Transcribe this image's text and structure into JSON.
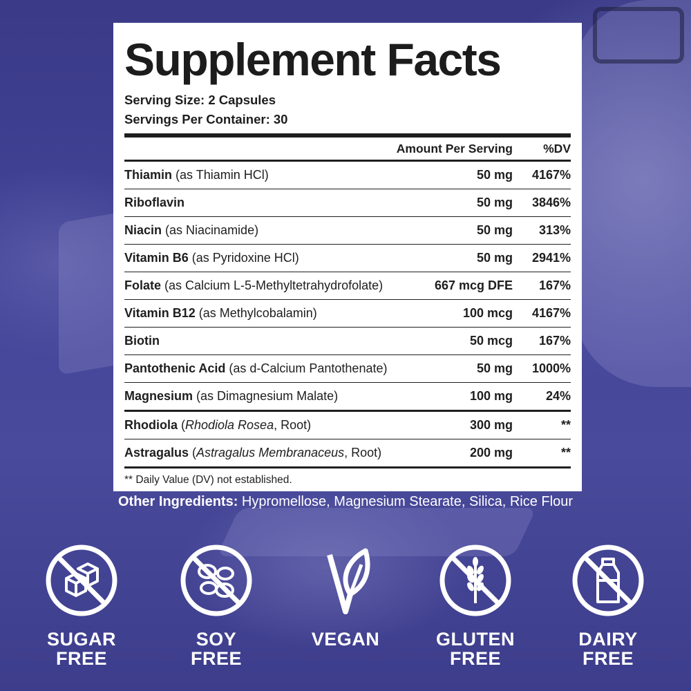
{
  "panel": {
    "title": "Supplement Facts",
    "serving_size": "Serving Size: 2 Capsules",
    "servings_per_container": "Servings Per Container: 30",
    "header_amount": "Amount Per Serving",
    "header_dv": "%DV",
    "rows": [
      {
        "name": "Thiamin",
        "source": " (as Thiamin HCl)",
        "amount": "50 mg",
        "dv": "4167%"
      },
      {
        "name": "Riboflavin",
        "source": "",
        "amount": "50 mg",
        "dv": "3846%"
      },
      {
        "name": "Niacin",
        "source": " (as Niacinamide)",
        "amount": "50 mg",
        "dv": "313%"
      },
      {
        "name": "Vitamin B6",
        "source": " (as Pyridoxine HCl)",
        "amount": "50 mg",
        "dv": "2941%"
      },
      {
        "name": "Folate",
        "source": " (as Calcium L-5-Methyltetrahydrofolate)",
        "amount": "667 mcg DFE",
        "dv": "167%"
      },
      {
        "name": "Vitamin B12",
        "source": " (as Methylcobalamin)",
        "amount": "100 mcg",
        "dv": "4167%"
      },
      {
        "name": "Biotin",
        "source": "",
        "amount": "50 mcg",
        "dv": "167%"
      },
      {
        "name": "Pantothenic Acid",
        "source": " (as d-Calcium Pantothenate)",
        "amount": "50 mg",
        "dv": "1000%"
      },
      {
        "name": "Magnesium",
        "source": " (as Dimagnesium Malate)",
        "amount": "100 mg",
        "dv": "24%"
      },
      {
        "name": "Rhodiola",
        "source_open": " (",
        "source_italic": "Rhodiola Rosea",
        "source_close": ", Root)",
        "amount": "300 mg",
        "dv": "**"
      },
      {
        "name": "Astragalus",
        "source_open": " (",
        "source_italic": "Astragalus Membranaceus",
        "source_close": ", Root)",
        "amount": "200 mg",
        "dv": "**"
      }
    ],
    "footnote": "** Daily Value (DV) not established."
  },
  "other_ingredients": {
    "label": "Other Ingredients:",
    "text": " Hypromellose, Magnesium Stearate, Silica, Rice Flour"
  },
  "badges": [
    {
      "line1": "SUGAR",
      "line2": "FREE",
      "icon": "sugar-cube-prohibited-icon"
    },
    {
      "line1": "SOY",
      "line2": "FREE",
      "icon": "soybean-prohibited-icon"
    },
    {
      "line1": "VEGAN",
      "line2": "",
      "icon": "leaf-v-icon"
    },
    {
      "line1": "GLUTEN",
      "line2": "FREE",
      "icon": "wheat-prohibited-icon"
    },
    {
      "line1": "DAIRY",
      "line2": "FREE",
      "icon": "milk-bottle-prohibited-icon"
    }
  ],
  "colors": {
    "background": "#3f3f8f",
    "panel": "#ffffff",
    "text": "#1e1e1e",
    "badge": "#ffffff"
  }
}
